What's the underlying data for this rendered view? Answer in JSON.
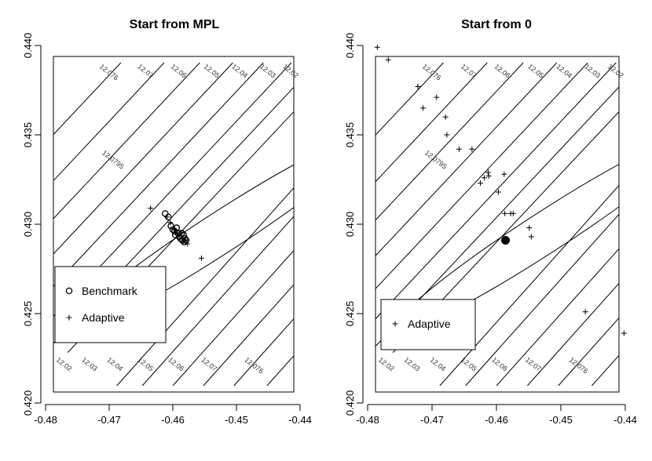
{
  "chart_data": [
    {
      "type": "scatter",
      "title": "Start from MPL",
      "xlim": [
        -0.48,
        -0.44
      ],
      "ylim": [
        0.42,
        0.44
      ],
      "x_ticks": [
        -0.48,
        -0.47,
        -0.46,
        -0.45,
        -0.44
      ],
      "y_ticks": [
        0.42,
        0.425,
        0.43,
        0.435,
        0.44
      ],
      "x_tick_labels": [
        "-0.48",
        "-0.47",
        "-0.46",
        "-0.45",
        "-0.44"
      ],
      "y_tick_labels": [
        "0.420",
        "0.425",
        "0.430",
        "0.435",
        "0.440"
      ],
      "contour_labels": [
        "12.0795",
        "12.076",
        "12.07",
        "12.06",
        "12.05",
        "12.04",
        "12.03",
        "12.02"
      ],
      "legend": {
        "placement": "left",
        "entries": [
          {
            "symbol": "o",
            "label": "Benchmark"
          },
          {
            "symbol": "+",
            "label": "Adaptive"
          }
        ]
      },
      "series": [
        {
          "name": "Benchmark",
          "symbol": "o",
          "points": [
            [
              -0.4612,
              0.4306
            ],
            [
              -0.4607,
              0.4304
            ],
            [
              -0.4603,
              0.4299
            ],
            [
              -0.46,
              0.4297
            ],
            [
              -0.4597,
              0.4296
            ],
            [
              -0.4594,
              0.4298
            ],
            [
              -0.4592,
              0.4295
            ],
            [
              -0.459,
              0.4293
            ],
            [
              -0.4588,
              0.4292
            ],
            [
              -0.4586,
              0.4295
            ],
            [
              -0.4585,
              0.4291
            ],
            [
              -0.4583,
              0.4294
            ],
            [
              -0.4582,
              0.429
            ],
            [
              -0.4581,
              0.4292
            ],
            [
              -0.4579,
              0.4291
            ],
            [
              -0.4596,
              0.4294
            ]
          ]
        },
        {
          "name": "Adaptive",
          "symbol": "+",
          "points": [
            [
              -0.4635,
              0.4309
            ],
            [
              -0.4609,
              0.4304
            ],
            [
              -0.4604,
              0.4301
            ],
            [
              -0.4598,
              0.4297
            ],
            [
              -0.4593,
              0.4295
            ],
            [
              -0.4589,
              0.4292
            ],
            [
              -0.4584,
              0.429
            ],
            [
              -0.458,
              0.4291
            ],
            [
              -0.4577,
              0.4289
            ],
            [
              -0.4555,
              0.4281
            ]
          ]
        }
      ]
    },
    {
      "type": "scatter",
      "title": "Start from 0",
      "xlim": [
        -0.48,
        -0.44
      ],
      "ylim": [
        0.42,
        0.44
      ],
      "x_ticks": [
        -0.48,
        -0.47,
        -0.46,
        -0.45,
        -0.44
      ],
      "y_ticks": [
        0.42,
        0.425,
        0.43,
        0.435,
        0.44
      ],
      "x_tick_labels": [
        "-0.48",
        "-0.47",
        "-0.46",
        "-0.45",
        "-0.44"
      ],
      "y_tick_labels": [
        "0.420",
        "0.425",
        "0.430",
        "0.435",
        "0.440"
      ],
      "contour_labels": [
        "12.0795",
        "12.076",
        "12.07",
        "12.06",
        "12.05",
        "12.04",
        "12.03",
        "12.02"
      ],
      "legend": {
        "placement": "bottom-left",
        "entries": [
          {
            "symbol": "+",
            "label": "Adaptive"
          }
        ]
      },
      "series": [
        {
          "name": "Adaptive",
          "symbol": "+",
          "points": [
            [
              -0.4785,
              0.4399
            ],
            [
              -0.4768,
              0.4392
            ],
            [
              -0.4722,
              0.4377
            ],
            [
              -0.4714,
              0.4365
            ],
            [
              -0.4693,
              0.4371
            ],
            [
              -0.4679,
              0.436
            ],
            [
              -0.4677,
              0.435
            ],
            [
              -0.4658,
              0.4342
            ],
            [
              -0.4638,
              0.4342
            ],
            [
              -0.4625,
              0.4323
            ],
            [
              -0.4619,
              0.4326
            ],
            [
              -0.4613,
              0.4329
            ],
            [
              -0.4612,
              0.4327
            ],
            [
              -0.4588,
              0.4328
            ],
            [
              -0.4597,
              0.4318
            ],
            [
              -0.4587,
              0.4306
            ],
            [
              -0.4578,
              0.4306
            ],
            [
              -0.4574,
              0.4306
            ],
            [
              -0.4549,
              0.4298
            ],
            [
              -0.4546,
              0.4293
            ],
            [
              -0.4462,
              0.4251
            ],
            [
              -0.4402,
              0.4239
            ]
          ]
        },
        {
          "name": "",
          "symbol": "filled-circle",
          "points": [
            [
              -0.4586,
              0.4291
            ]
          ]
        }
      ]
    }
  ]
}
